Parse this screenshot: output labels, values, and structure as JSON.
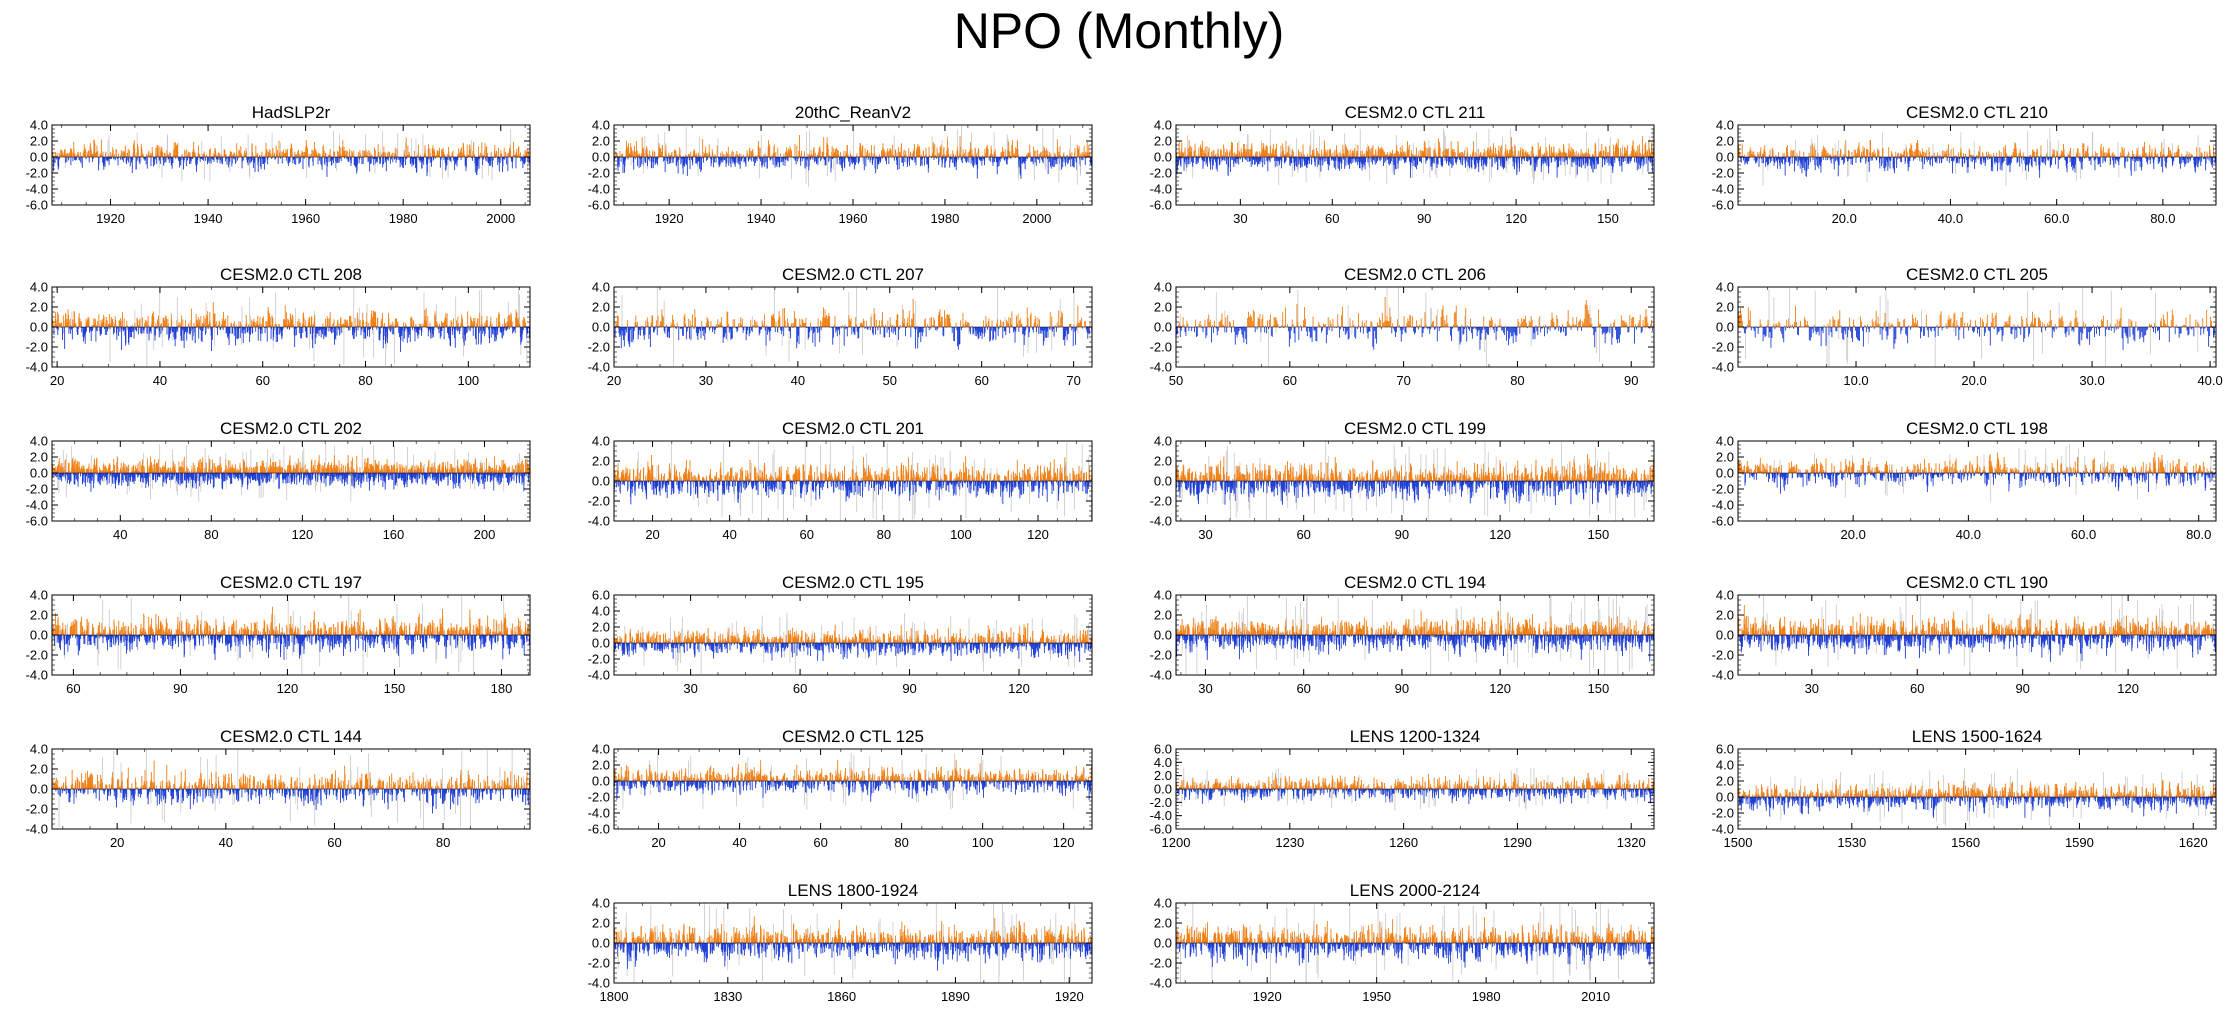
{
  "title": "NPO (Monthly)",
  "colors": {
    "positive": "#f07f13",
    "negative": "#1f3fd6",
    "spread": "#c8c8c8",
    "axis": "#000000"
  },
  "chart_data": [
    {
      "type": "bar",
      "title": "HadSLP2r",
      "xlim": [
        1908,
        2006
      ],
      "xticks": [
        "1920",
        "1940",
        "1960",
        "1980",
        "2000"
      ],
      "xtick_values": [
        1920,
        1940,
        1960,
        1980,
        2000
      ],
      "ylim": [
        -6,
        4
      ],
      "yticks": [
        "4.0",
        "2.0",
        "0.0",
        "-2.0",
        "-4.0",
        "-6.0"
      ],
      "ytick_values": [
        4,
        2,
        0,
        -2,
        -4,
        -6
      ],
      "n_months": 1176,
      "amplitude": 2.5
    },
    {
      "type": "bar",
      "title": "20thC_ReanV2",
      "xlim": [
        1908,
        2012
      ],
      "xticks": [
        "1920",
        "1940",
        "1960",
        "1980",
        "2000"
      ],
      "xtick_values": [
        1920,
        1940,
        1960,
        1980,
        2000
      ],
      "ylim": [
        -6,
        4
      ],
      "yticks": [
        "4.0",
        "2.0",
        "0.0",
        "-2.0",
        "-4.0",
        "-6.0"
      ],
      "ytick_values": [
        4,
        2,
        0,
        -2,
        -4,
        -6
      ],
      "n_months": 1248,
      "amplitude": 2.8
    },
    {
      "type": "bar",
      "title": "CESM2.0 CTL 211",
      "xlim": [
        9,
        165
      ],
      "xticks": [
        "30",
        "60",
        "90",
        "120",
        "150"
      ],
      "xtick_values": [
        30,
        60,
        90,
        120,
        150
      ],
      "ylim": [
        -6,
        4
      ],
      "yticks": [
        "4.0",
        "2.0",
        "0.0",
        "-2.0",
        "-4.0",
        "-6.0"
      ],
      "ytick_values": [
        4,
        2,
        0,
        -2,
        -4,
        -6
      ],
      "n_months": 1872,
      "amplitude": 2.6
    },
    {
      "type": "bar",
      "title": "CESM2.0 CTL 210",
      "xlim": [
        0,
        90
      ],
      "xticks": [
        "20.0",
        "40.0",
        "60.0",
        "80.0"
      ],
      "xtick_values": [
        20,
        40,
        60,
        80
      ],
      "ylim": [
        -6,
        4
      ],
      "yticks": [
        "4.0",
        "2.0",
        "0.0",
        "-2.0",
        "-4.0",
        "-6.0"
      ],
      "ytick_values": [
        4,
        2,
        0,
        -2,
        -4,
        -6
      ],
      "n_months": 1080,
      "amplitude": 2.6
    },
    {
      "type": "bar",
      "title": "CESM2.0 CTL 208",
      "xlim": [
        19,
        112
      ],
      "xticks": [
        "20",
        "40",
        "60",
        "80",
        "100"
      ],
      "xtick_values": [
        20,
        40,
        60,
        80,
        100
      ],
      "ylim": [
        -4,
        4
      ],
      "yticks": [
        "4.0",
        "2.0",
        "0.0",
        "-2.0",
        "-4.0"
      ],
      "ytick_values": [
        4,
        2,
        0,
        -2,
        -4
      ],
      "n_months": 1116,
      "amplitude": 3.0
    },
    {
      "type": "bar",
      "title": "CESM2.0 CTL 207",
      "xlim": [
        20,
        72
      ],
      "xticks": [
        "20",
        "30",
        "40",
        "50",
        "60",
        "70"
      ],
      "xtick_values": [
        20,
        30,
        40,
        50,
        60,
        70
      ],
      "ylim": [
        -4,
        4
      ],
      "yticks": [
        "4.0",
        "2.0",
        "0.0",
        "-2.0",
        "-4.0"
      ],
      "ytick_values": [
        4,
        2,
        0,
        -2,
        -4
      ],
      "n_months": 624,
      "amplitude": 3.0
    },
    {
      "type": "bar",
      "title": "CESM2.0 CTL 206",
      "xlim": [
        50,
        92
      ],
      "xticks": [
        "50",
        "60",
        "70",
        "80",
        "90"
      ],
      "xtick_values": [
        50,
        60,
        70,
        80,
        90
      ],
      "ylim": [
        -4,
        4
      ],
      "yticks": [
        "4.0",
        "2.0",
        "0.0",
        "-2.0",
        "-4.0"
      ],
      "ytick_values": [
        4,
        2,
        0,
        -2,
        -4
      ],
      "n_months": 504,
      "amplitude": 3.0
    },
    {
      "type": "bar",
      "title": "CESM2.0 CTL 205",
      "xlim": [
        0,
        40.5
      ],
      "xticks": [
        "10.0",
        "20.0",
        "30.0",
        "40.0"
      ],
      "xtick_values": [
        10,
        20,
        30,
        40
      ],
      "ylim": [
        -4,
        4
      ],
      "yticks": [
        "4.0",
        "2.0",
        "0.0",
        "-2.0",
        "-4.0"
      ],
      "ytick_values": [
        4,
        2,
        0,
        -2,
        -4
      ],
      "n_months": 486,
      "amplitude": 3.0
    },
    {
      "type": "bar",
      "title": "CESM2.0 CTL 202",
      "xlim": [
        10,
        220
      ],
      "xticks": [
        "40",
        "80",
        "120",
        "160",
        "200"
      ],
      "xtick_values": [
        40,
        80,
        120,
        160,
        200
      ],
      "ylim": [
        -6,
        4
      ],
      "yticks": [
        "4.0",
        "2.0",
        "0.0",
        "-2.0",
        "-4.0",
        "-6.0"
      ],
      "ytick_values": [
        4,
        2,
        0,
        -2,
        -4,
        -6
      ],
      "n_months": 2520,
      "amplitude": 2.6
    },
    {
      "type": "bar",
      "title": "CESM2.0 CTL 201",
      "xlim": [
        10,
        134
      ],
      "xticks": [
        "20",
        "40",
        "60",
        "80",
        "100",
        "120"
      ],
      "xtick_values": [
        20,
        40,
        60,
        80,
        100,
        120
      ],
      "ylim": [
        -4,
        4
      ],
      "yticks": [
        "4.0",
        "2.0",
        "0.0",
        "-2.0",
        "-4.0"
      ],
      "ytick_values": [
        4,
        2,
        0,
        -2,
        -4
      ],
      "n_months": 1488,
      "amplitude": 3.0
    },
    {
      "type": "bar",
      "title": "CESM2.0 CTL 199",
      "xlim": [
        21,
        167
      ],
      "xticks": [
        "30",
        "60",
        "90",
        "120",
        "150"
      ],
      "xtick_values": [
        30,
        60,
        90,
        120,
        150
      ],
      "ylim": [
        -4,
        4
      ],
      "yticks": [
        "4.0",
        "2.0",
        "0.0",
        "-2.0",
        "-4.0"
      ],
      "ytick_values": [
        4,
        2,
        0,
        -2,
        -4
      ],
      "n_months": 1752,
      "amplitude": 3.0
    },
    {
      "type": "bar",
      "title": "CESM2.0 CTL 198",
      "xlim": [
        0,
        83
      ],
      "xticks": [
        "20.0",
        "40.0",
        "60.0",
        "80.0"
      ],
      "xtick_values": [
        20,
        40,
        60,
        80
      ],
      "ylim": [
        -6,
        4
      ],
      "yticks": [
        "4.0",
        "2.0",
        "0.0",
        "-2.0",
        "-4.0",
        "-6.0"
      ],
      "ytick_values": [
        4,
        2,
        0,
        -2,
        -4,
        -6
      ],
      "n_months": 996,
      "amplitude": 2.6
    },
    {
      "type": "bar",
      "title": "CESM2.0 CTL 197",
      "xlim": [
        54,
        188
      ],
      "xticks": [
        "60",
        "90",
        "120",
        "150",
        "180"
      ],
      "xtick_values": [
        60,
        90,
        120,
        150,
        180
      ],
      "ylim": [
        -4,
        4
      ],
      "yticks": [
        "4.0",
        "2.0",
        "0.0",
        "-2.0",
        "-4.0"
      ],
      "ytick_values": [
        4,
        2,
        0,
        -2,
        -4
      ],
      "n_months": 1608,
      "amplitude": 3.0
    },
    {
      "type": "bar",
      "title": "CESM2.0 CTL 195",
      "xlim": [
        9,
        140
      ],
      "xticks": [
        "30",
        "60",
        "90",
        "120"
      ],
      "xtick_values": [
        30,
        60,
        90,
        120
      ],
      "ylim": [
        -4,
        6
      ],
      "yticks": [
        "6.0",
        "4.0",
        "2.0",
        "0.0",
        "-2.0",
        "-4.0"
      ],
      "ytick_values": [
        6,
        4,
        2,
        0,
        -2,
        -4
      ],
      "n_months": 1572,
      "amplitude": 2.8
    },
    {
      "type": "bar",
      "title": "CESM2.0 CTL 194",
      "xlim": [
        21,
        167
      ],
      "xticks": [
        "30",
        "60",
        "90",
        "120",
        "150"
      ],
      "xtick_values": [
        30,
        60,
        90,
        120,
        150
      ],
      "ylim": [
        -4,
        4
      ],
      "yticks": [
        "4.0",
        "2.0",
        "0.0",
        "-2.0",
        "-4.0"
      ],
      "ytick_values": [
        4,
        2,
        0,
        -2,
        -4
      ],
      "n_months": 1752,
      "amplitude": 3.0
    },
    {
      "type": "bar",
      "title": "CESM2.0 CTL 190",
      "xlim": [
        9,
        145
      ],
      "xticks": [
        "30",
        "60",
        "90",
        "120"
      ],
      "xtick_values": [
        30,
        60,
        90,
        120
      ],
      "ylim": [
        -4,
        4
      ],
      "yticks": [
        "4.0",
        "2.0",
        "0.0",
        "-2.0",
        "-4.0"
      ],
      "ytick_values": [
        4,
        2,
        0,
        -2,
        -4
      ],
      "n_months": 1632,
      "amplitude": 3.0
    },
    {
      "type": "bar",
      "title": "CESM2.0 CTL 144",
      "xlim": [
        8,
        96
      ],
      "xticks": [
        "20",
        "40",
        "60",
        "80"
      ],
      "xtick_values": [
        20,
        40,
        60,
        80
      ],
      "ylim": [
        -4,
        4
      ],
      "yticks": [
        "4.0",
        "2.0",
        "0.0",
        "-2.0",
        "-4.0"
      ],
      "ytick_values": [
        4,
        2,
        0,
        -2,
        -4
      ],
      "n_months": 1056,
      "amplitude": 3.0
    },
    {
      "type": "bar",
      "title": "CESM2.0 CTL 125",
      "xlim": [
        9,
        127
      ],
      "xticks": [
        "20",
        "40",
        "60",
        "80",
        "100",
        "120"
      ],
      "xtick_values": [
        20,
        40,
        60,
        80,
        100,
        120
      ],
      "ylim": [
        -6,
        4
      ],
      "yticks": [
        "4.0",
        "2.0",
        "0.0",
        "-2.0",
        "-4.0",
        "-6.0"
      ],
      "ytick_values": [
        4,
        2,
        0,
        -2,
        -4,
        -6
      ],
      "n_months": 1416,
      "amplitude": 2.6
    },
    {
      "type": "bar",
      "title": "LENS 1200-1324",
      "xlim": [
        1200,
        1326
      ],
      "xticks": [
        "1200",
        "1230",
        "1260",
        "1290",
        "1320"
      ],
      "xtick_values": [
        1200,
        1230,
        1260,
        1290,
        1320
      ],
      "ylim": [
        -6,
        6
      ],
      "yticks": [
        "6.0",
        "4.0",
        "2.0",
        "0.0",
        "-2.0",
        "-4.0",
        "-6.0"
      ],
      "ytick_values": [
        6,
        4,
        2,
        0,
        -2,
        -4,
        -6
      ],
      "n_months": 1512,
      "amplitude": 2.4
    },
    {
      "type": "bar",
      "title": "LENS 1500-1624",
      "xlim": [
        1500,
        1626
      ],
      "xticks": [
        "1500",
        "1530",
        "1560",
        "1590",
        "1620"
      ],
      "xtick_values": [
        1500,
        1530,
        1560,
        1590,
        1620
      ],
      "ylim": [
        -4,
        6
      ],
      "yticks": [
        "6.0",
        "4.0",
        "2.0",
        "0.0",
        "-2.0",
        "-4.0"
      ],
      "ytick_values": [
        6,
        4,
        2,
        0,
        -2,
        -4
      ],
      "n_months": 1512,
      "amplitude": 2.6
    },
    {
      "type": "bar",
      "title": "LENS 1800-1924",
      "xlim": [
        1800,
        1926
      ],
      "xticks": [
        "1800",
        "1830",
        "1860",
        "1890",
        "1920"
      ],
      "xtick_values": [
        1800,
        1830,
        1860,
        1890,
        1920
      ],
      "ylim": [
        -4,
        4
      ],
      "yticks": [
        "4.0",
        "2.0",
        "0.0",
        "-2.0",
        "-4.0"
      ],
      "ytick_values": [
        4,
        2,
        0,
        -2,
        -4
      ],
      "n_months": 1512,
      "amplitude": 3.0
    },
    {
      "type": "bar",
      "title": "LENS 2000-2124",
      "xlim": [
        1895,
        2026
      ],
      "xticks": [
        "1920",
        "1950",
        "1980",
        "2010"
      ],
      "xtick_values": [
        1920,
        1950,
        1980,
        2010
      ],
      "ylim": [
        -4,
        4
      ],
      "yticks": [
        "4.0",
        "2.0",
        "0.0",
        "-2.0",
        "-4.0"
      ],
      "ytick_values": [
        4,
        2,
        0,
        -2,
        -4
      ],
      "n_months": 1572,
      "amplitude": 3.0
    }
  ]
}
